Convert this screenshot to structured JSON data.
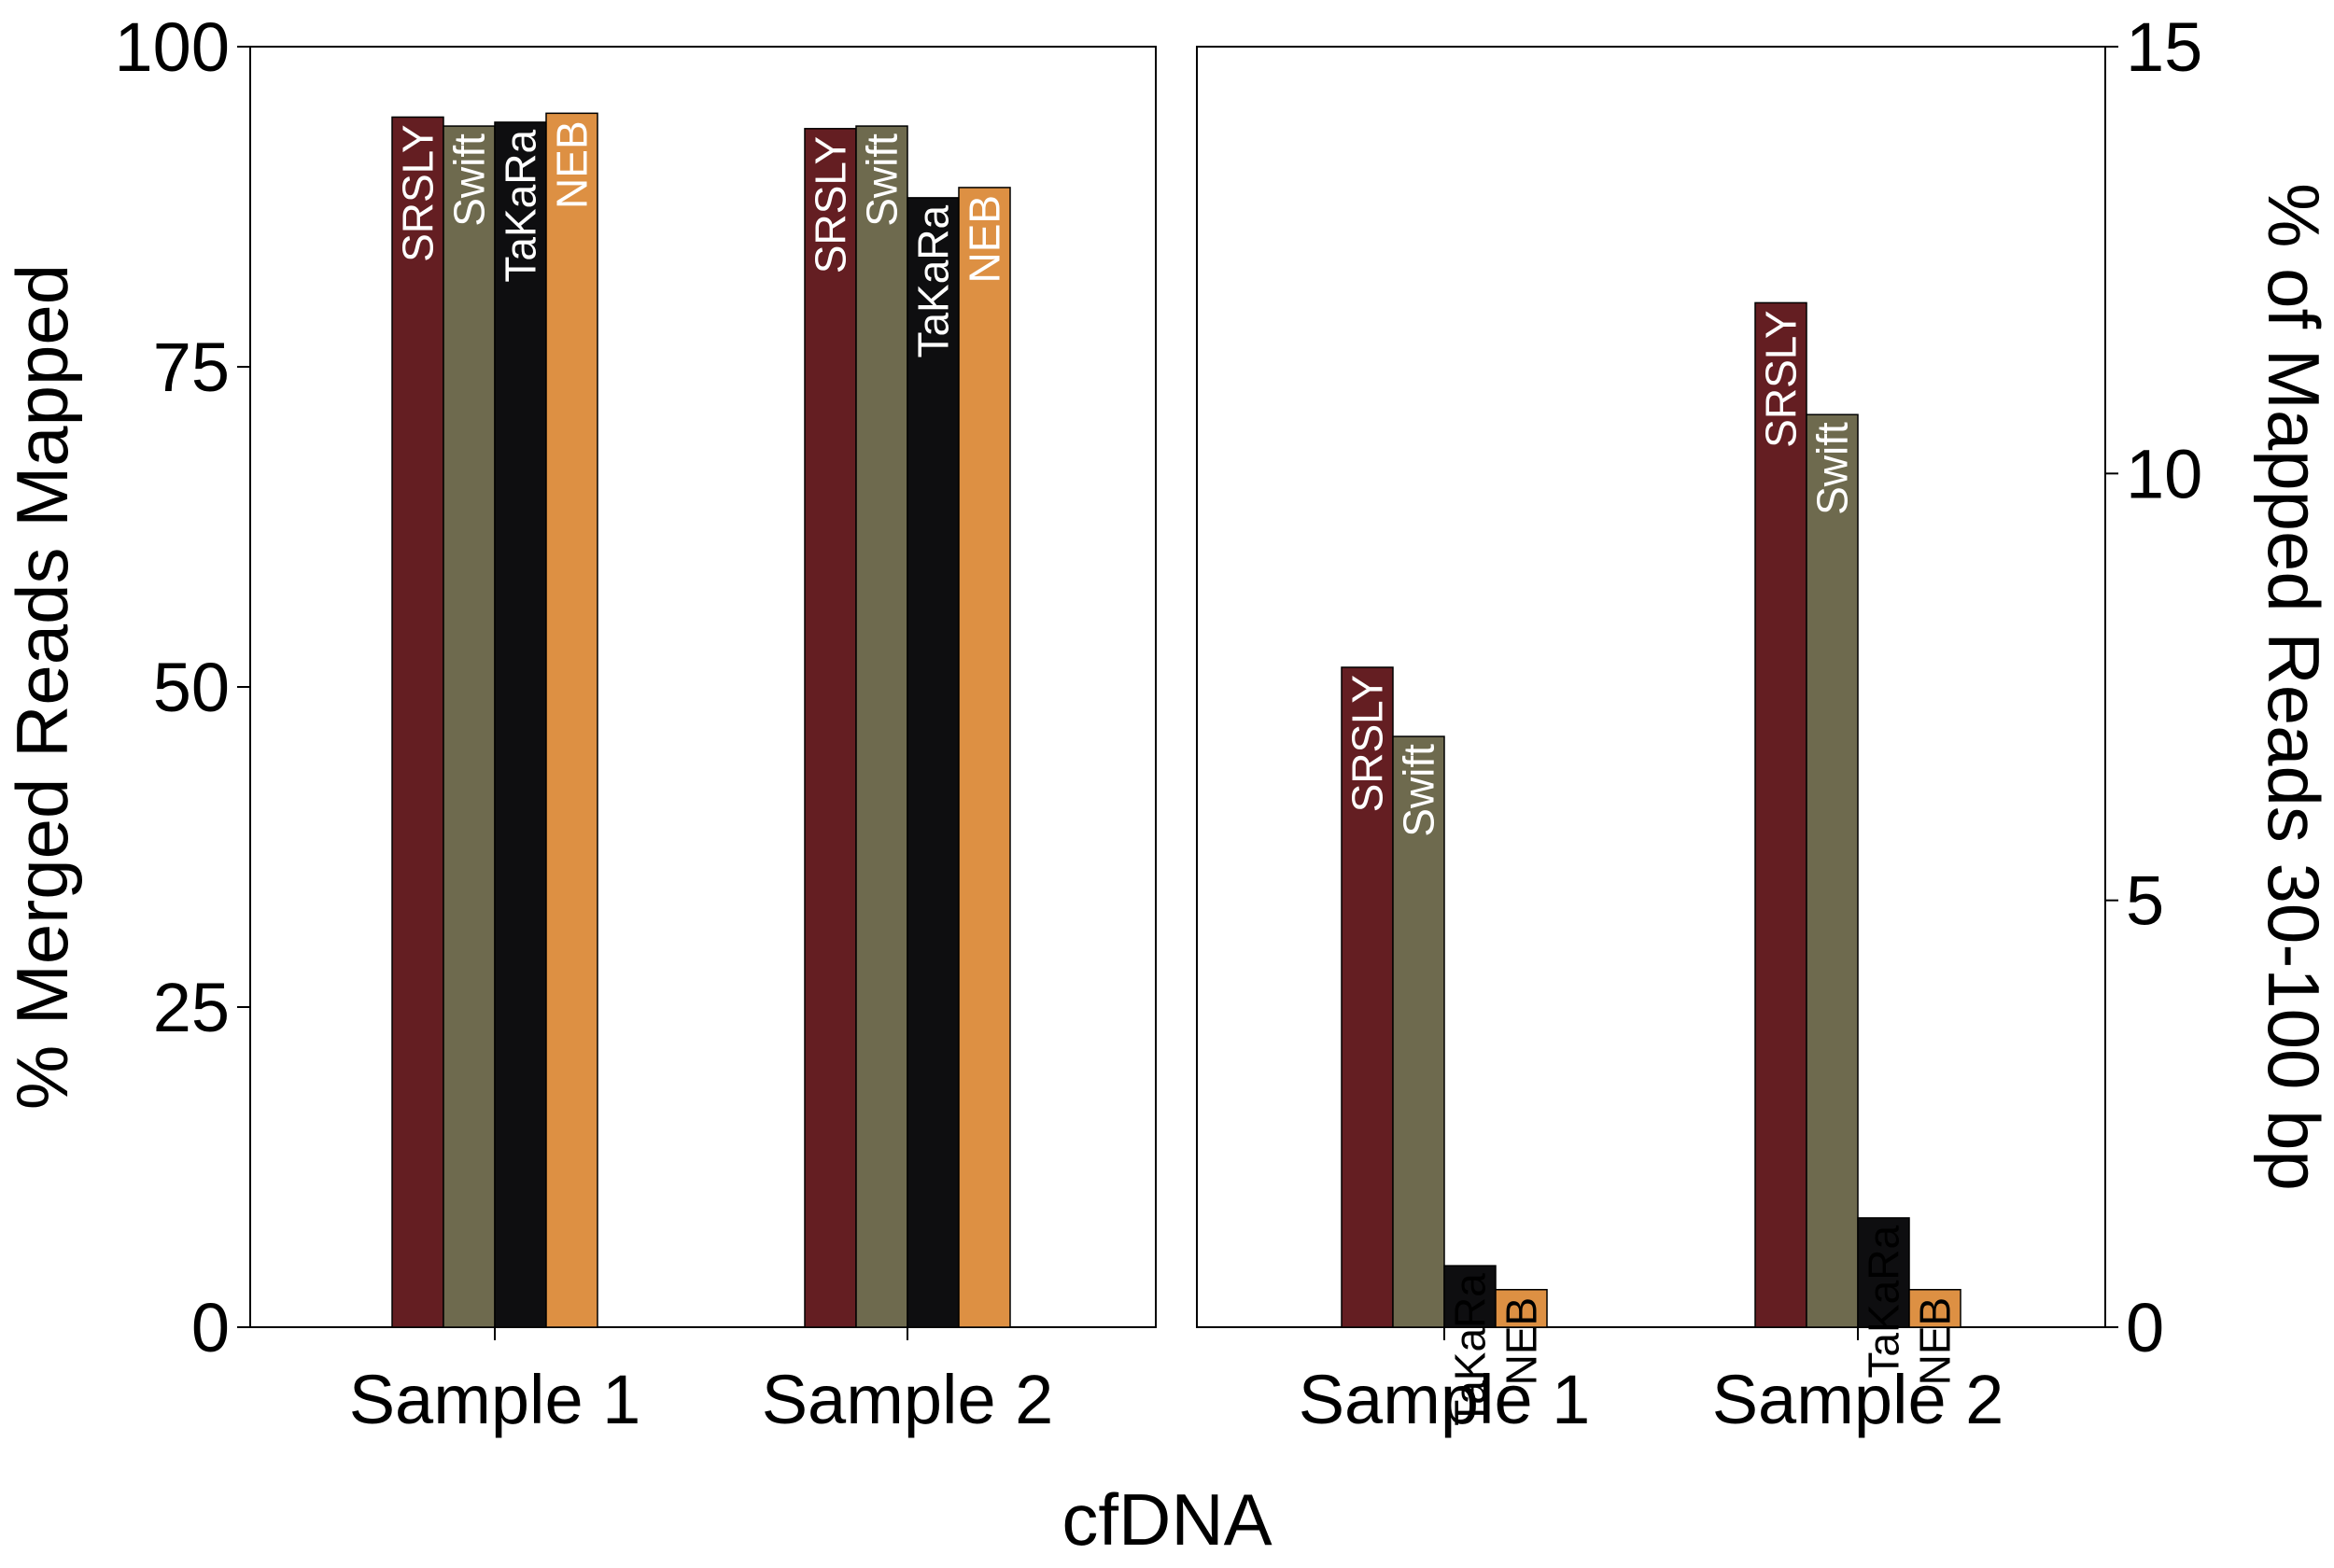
{
  "figure": {
    "xlabel": "cfDNA"
  },
  "chart_data": [
    {
      "type": "bar",
      "categories": [
        "Sample 1",
        "Sample 2"
      ],
      "ylabel": "% Merged Reads Mapped",
      "yaxis_side": "left",
      "ylim": [
        0,
        100
      ],
      "yticks": [
        0,
        25,
        50,
        75,
        100
      ],
      "grid": false,
      "series": [
        {
          "name": "SRSLY",
          "color": "#641e22",
          "label_color": "#ffffff",
          "values": [
            94.5,
            93.6
          ]
        },
        {
          "name": "Swift",
          "color": "#6e6a4e",
          "label_color": "#ffffff",
          "values": [
            93.8,
            93.8
          ]
        },
        {
          "name": "TaKaRa",
          "color": "#0e0e10",
          "label_color": "#ffffff",
          "values": [
            94.1,
            88.2
          ]
        },
        {
          "name": "NEB",
          "color": "#dd9043",
          "label_color": "#ffffff",
          "values": [
            94.8,
            89.0
          ]
        }
      ]
    },
    {
      "type": "bar",
      "categories": [
        "Sample 1",
        "Sample 2"
      ],
      "ylabel": "% of Mapped Reads 30-100 bp",
      "yaxis_side": "right",
      "ylim": [
        0,
        15
      ],
      "yticks": [
        0,
        5,
        10,
        15
      ],
      "grid": false,
      "series": [
        {
          "name": "SRSLY",
          "color": "#641e22",
          "label_color": "#ffffff",
          "values": [
            7.73,
            12.0
          ]
        },
        {
          "name": "Swift",
          "color": "#6e6a4e",
          "label_color": "#ffffff",
          "values": [
            6.92,
            10.69
          ]
        },
        {
          "name": "TaKaRa",
          "color": "#0e0e10",
          "label_color": "#000000",
          "values": [
            0.72,
            1.28
          ]
        },
        {
          "name": "NEB",
          "color": "#dd9043",
          "label_color": "#000000",
          "values": [
            0.44,
            0.44
          ]
        }
      ]
    }
  ]
}
